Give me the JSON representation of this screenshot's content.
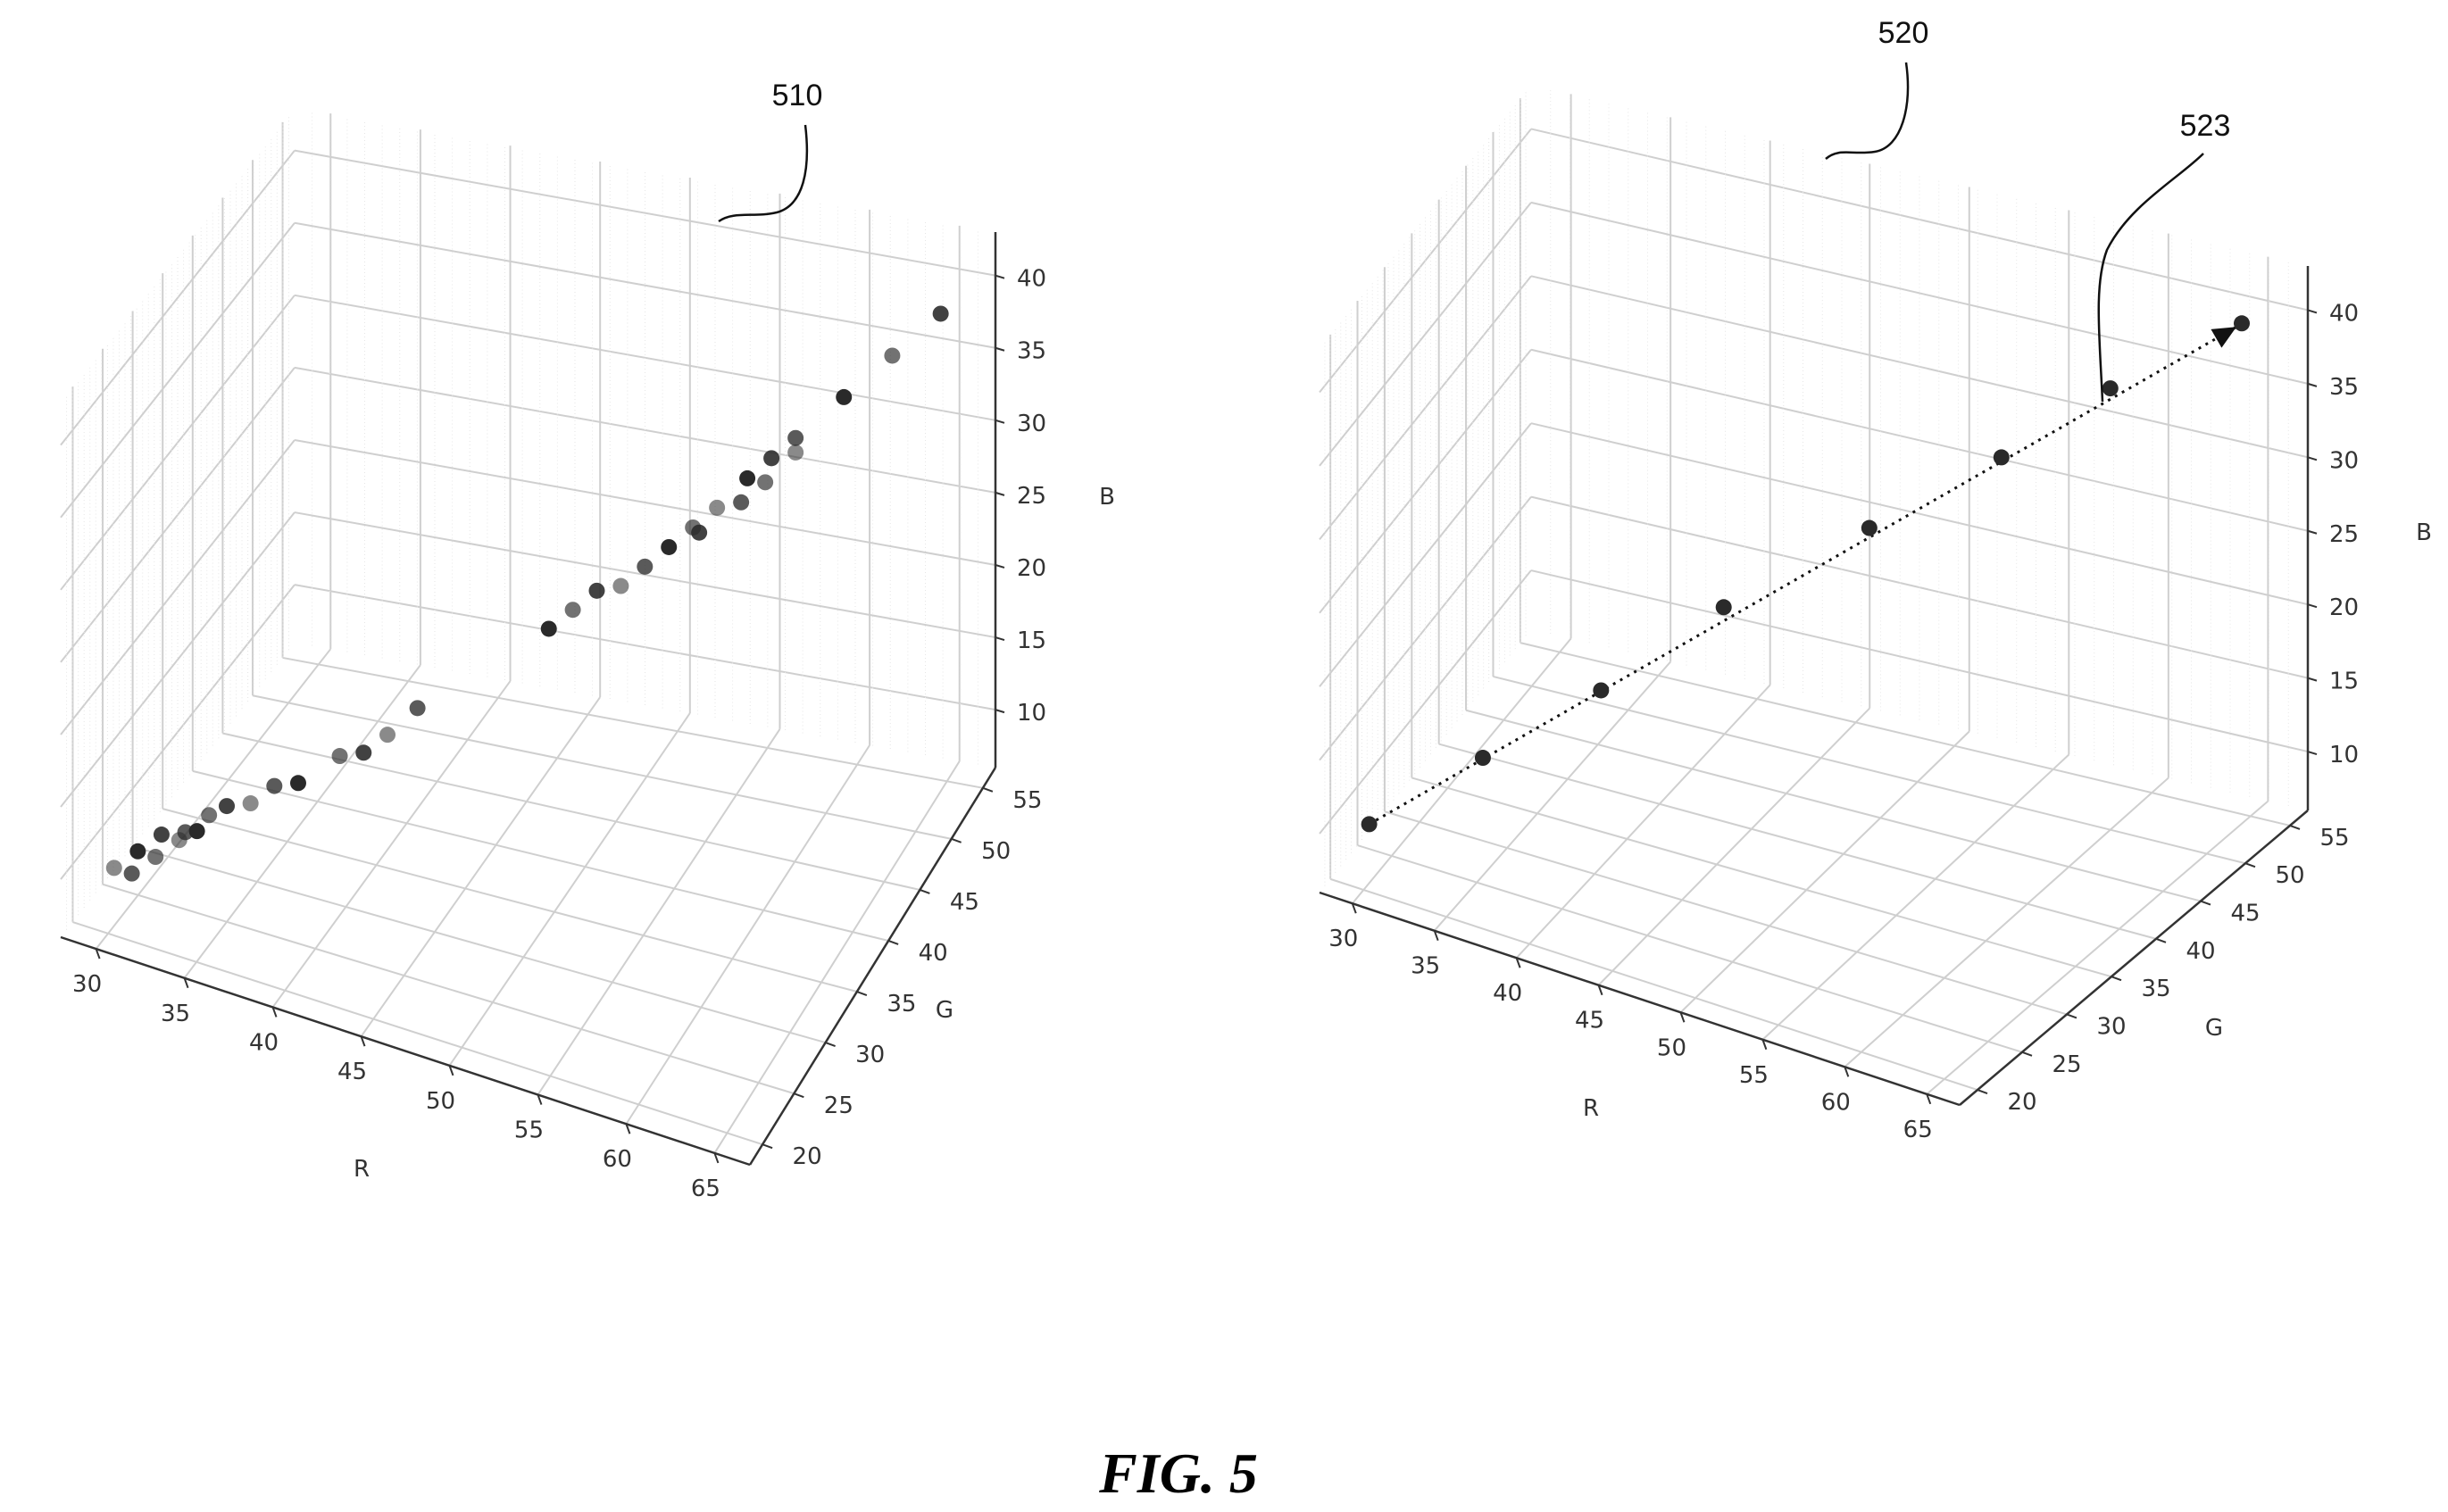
{
  "figure": {
    "caption": "FIG. 5",
    "labels": {
      "left_ref": "510",
      "right_ref": "520",
      "arrow_ref": "523"
    }
  },
  "chart_data": [
    {
      "type": "scatter",
      "projection": "3d",
      "title": "",
      "xlabel": "R",
      "ylabel": "G",
      "zlabel": "B",
      "xticks": [
        30,
        35,
        40,
        45,
        50,
        55,
        60,
        65
      ],
      "yticks": [
        20,
        25,
        30,
        35,
        40,
        45,
        50,
        55
      ],
      "zticks": [
        10,
        15,
        20,
        25,
        30,
        35,
        40
      ],
      "xlim": [
        28,
        67
      ],
      "ylim": [
        18,
        57
      ],
      "zlim": [
        6,
        43
      ],
      "grid": true,
      "marker_color": "#2a2a2a",
      "points": [
        {
          "r": 30,
          "g": 21,
          "b": 10
        },
        {
          "r": 31,
          "g": 21,
          "b": 10
        },
        {
          "r": 31,
          "g": 22,
          "b": 11
        },
        {
          "r": 32,
          "g": 22,
          "b": 11
        },
        {
          "r": 32,
          "g": 23,
          "b": 12
        },
        {
          "r": 33,
          "g": 23,
          "b": 12
        },
        {
          "r": 33,
          "g": 24,
          "b": 12
        },
        {
          "r": 34,
          "g": 23,
          "b": 13
        },
        {
          "r": 34,
          "g": 25,
          "b": 13
        },
        {
          "r": 35,
          "g": 25,
          "b": 14
        },
        {
          "r": 36,
          "g": 26,
          "b": 14
        },
        {
          "r": 37,
          "g": 27,
          "b": 15
        },
        {
          "r": 38,
          "g": 28,
          "b": 15
        },
        {
          "r": 40,
          "g": 29,
          "b": 17
        },
        {
          "r": 41,
          "g": 30,
          "b": 17
        },
        {
          "r": 42,
          "g": 31,
          "b": 18
        },
        {
          "r": 43,
          "g": 33,
          "b": 19
        },
        {
          "r": 49,
          "g": 37,
          "b": 24
        },
        {
          "r": 50,
          "g": 38,
          "b": 25
        },
        {
          "r": 51,
          "g": 39,
          "b": 26
        },
        {
          "r": 52,
          "g": 40,
          "b": 26
        },
        {
          "r": 53,
          "g": 41,
          "b": 27
        },
        {
          "r": 54,
          "g": 42,
          "b": 28
        },
        {
          "r": 55,
          "g": 43,
          "b": 29
        },
        {
          "r": 55,
          "g": 44,
          "b": 28
        },
        {
          "r": 56,
          "g": 44,
          "b": 30
        },
        {
          "r": 57,
          "g": 45,
          "b": 30
        },
        {
          "r": 57,
          "g": 46,
          "b": 31
        },
        {
          "r": 58,
          "g": 46,
          "b": 31
        },
        {
          "r": 58,
          "g": 47,
          "b": 32
        },
        {
          "r": 59,
          "g": 48,
          "b": 32
        },
        {
          "r": 59,
          "g": 48,
          "b": 33
        },
        {
          "r": 61,
          "g": 50,
          "b": 35
        },
        {
          "r": 63,
          "g": 52,
          "b": 37
        },
        {
          "r": 65,
          "g": 54,
          "b": 39
        }
      ]
    },
    {
      "type": "scatter",
      "projection": "3d",
      "title": "",
      "xlabel": "R",
      "ylabel": "G",
      "zlabel": "B",
      "xticks": [
        30,
        35,
        40,
        45,
        50,
        55,
        60,
        65
      ],
      "yticks": [
        20,
        25,
        30,
        35,
        40,
        45,
        50,
        55
      ],
      "zticks": [
        10,
        15,
        20,
        25,
        30,
        35,
        40
      ],
      "xlim": [
        28,
        67
      ],
      "ylim": [
        18,
        57
      ],
      "zlim": [
        6,
        43
      ],
      "grid": true,
      "marker_color": "#2a2a2a",
      "trend_line": {
        "style": "dotted",
        "arrow": true
      },
      "points": [
        {
          "r": 30,
          "g": 21,
          "b": 10
        },
        {
          "r": 35,
          "g": 26,
          "b": 14
        },
        {
          "r": 40,
          "g": 31,
          "b": 18
        },
        {
          "r": 45,
          "g": 36,
          "b": 23
        },
        {
          "r": 51,
          "g": 41,
          "b": 28
        },
        {
          "r": 56,
          "g": 46,
          "b": 32
        },
        {
          "r": 60,
          "g": 50,
          "b": 36
        },
        {
          "r": 65,
          "g": 54,
          "b": 40
        }
      ]
    }
  ]
}
